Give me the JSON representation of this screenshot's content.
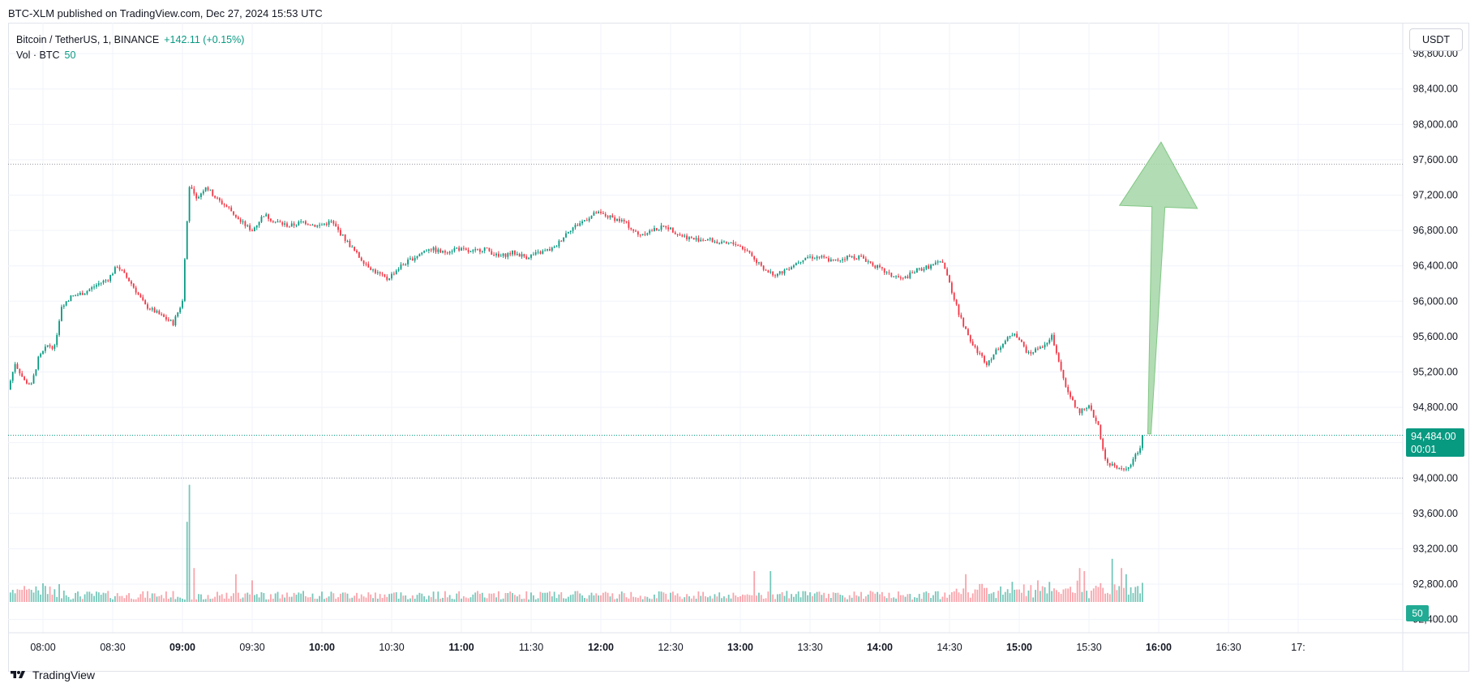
{
  "header": {
    "publish_text": "BTC-XLM published on TradingView.com, Dec 27, 2024 15:53 UTC"
  },
  "legend": {
    "symbol": "Bitcoin / TetherUS, 1, BINANCE",
    "change": "+142.11 (+0.15%)",
    "volume_label": "Vol · BTC",
    "volume_value": "50"
  },
  "unit_button": "USDT",
  "price_tag": {
    "price": "94,484.00",
    "countdown": "00:01"
  },
  "volume_tag": "50",
  "footer": {
    "brand": "TradingView"
  },
  "colors": {
    "up": "#089981",
    "down": "#f23645",
    "arrow": "#a5d6a7"
  },
  "chart_data": {
    "type": "candlestick",
    "interval_minutes": 1,
    "x_ticks": [
      "08:00",
      "08:30",
      "09:00",
      "09:30",
      "10:00",
      "10:30",
      "11:00",
      "11:30",
      "12:00",
      "12:30",
      "13:00",
      "13:30",
      "14:00",
      "14:30",
      "15:00",
      "15:30",
      "16:00",
      "16:30",
      "17:"
    ],
    "bold_ticks": [
      "09:00",
      "10:00",
      "11:00",
      "12:00",
      "13:00",
      "14:00",
      "15:00",
      "16:00"
    ],
    "y_ticks": [
      "98,800.00",
      "98,400.00",
      "98,000.00",
      "97,600.00",
      "97,200.00",
      "96,800.00",
      "96,400.00",
      "96,000.00",
      "95,600.00",
      "95,200.00",
      "94,800.00",
      "94,400.00",
      "94,000.00",
      "93,600.00",
      "93,200.00",
      "92,800.00",
      "92,400.00"
    ],
    "y_range": [
      92250,
      99150
    ],
    "x_range": [
      "07:45",
      "17:45"
    ],
    "reference_lines": {
      "high": 97550,
      "low": 94000,
      "last": 94484
    },
    "path": [
      [
        "07:45",
        95000
      ],
      [
        "07:48",
        95300
      ],
      [
        "07:52",
        95100
      ],
      [
        "07:55",
        95050
      ],
      [
        "07:58",
        95350
      ],
      [
        "08:02",
        95500
      ],
      [
        "08:05",
        95480
      ],
      [
        "08:08",
        95950
      ],
      [
        "08:12",
        96050
      ],
      [
        "08:18",
        96100
      ],
      [
        "08:24",
        96200
      ],
      [
        "08:28",
        96250
      ],
      [
        "08:32",
        96400
      ],
      [
        "08:38",
        96200
      ],
      [
        "08:44",
        95950
      ],
      [
        "08:50",
        95850
      ],
      [
        "08:56",
        95750
      ],
      [
        "09:00",
        96000
      ],
      [
        "09:01",
        96500
      ],
      [
        "09:03",
        97300
      ],
      [
        "09:06",
        97150
      ],
      [
        "09:10",
        97300
      ],
      [
        "09:15",
        97150
      ],
      [
        "09:20",
        97050
      ],
      [
        "09:25",
        96900
      ],
      [
        "09:30",
        96800
      ],
      [
        "09:35",
        96980
      ],
      [
        "09:40",
        96900
      ],
      [
        "09:46",
        96850
      ],
      [
        "09:52",
        96900
      ],
      [
        "09:58",
        96850
      ],
      [
        "10:04",
        96900
      ],
      [
        "10:10",
        96700
      ],
      [
        "10:16",
        96500
      ],
      [
        "10:22",
        96350
      ],
      [
        "10:28",
        96250
      ],
      [
        "10:34",
        96400
      ],
      [
        "10:40",
        96500
      ],
      [
        "10:46",
        96600
      ],
      [
        "10:52",
        96550
      ],
      [
        "10:58",
        96600
      ],
      [
        "11:04",
        96550
      ],
      [
        "11:10",
        96600
      ],
      [
        "11:16",
        96500
      ],
      [
        "11:22",
        96550
      ],
      [
        "11:28",
        96500
      ],
      [
        "11:34",
        96550
      ],
      [
        "11:40",
        96600
      ],
      [
        "11:46",
        96800
      ],
      [
        "11:52",
        96900
      ],
      [
        "11:58",
        97000
      ],
      [
        "12:04",
        96950
      ],
      [
        "12:10",
        96900
      ],
      [
        "12:16",
        96750
      ],
      [
        "12:22",
        96800
      ],
      [
        "12:28",
        96850
      ],
      [
        "12:34",
        96750
      ],
      [
        "12:40",
        96700
      ],
      [
        "12:46",
        96700
      ],
      [
        "12:52",
        96650
      ],
      [
        "12:58",
        96650
      ],
      [
        "13:04",
        96550
      ],
      [
        "13:10",
        96350
      ],
      [
        "13:16",
        96300
      ],
      [
        "13:22",
        96400
      ],
      [
        "13:28",
        96500
      ],
      [
        "13:34",
        96500
      ],
      [
        "13:40",
        96450
      ],
      [
        "13:46",
        96500
      ],
      [
        "13:52",
        96500
      ],
      [
        "13:58",
        96400
      ],
      [
        "14:04",
        96300
      ],
      [
        "14:10",
        96250
      ],
      [
        "14:16",
        96350
      ],
      [
        "14:22",
        96400
      ],
      [
        "14:27",
        96450
      ],
      [
        "14:30",
        96200
      ],
      [
        "14:34",
        95850
      ],
      [
        "14:40",
        95500
      ],
      [
        "14:46",
        95300
      ],
      [
        "14:52",
        95500
      ],
      [
        "14:58",
        95650
      ],
      [
        "15:04",
        95400
      ],
      [
        "15:10",
        95500
      ],
      [
        "15:14",
        95600
      ],
      [
        "15:18",
        95200
      ],
      [
        "15:22",
        94900
      ],
      [
        "15:26",
        94750
      ],
      [
        "15:30",
        94800
      ],
      [
        "15:34",
        94600
      ],
      [
        "15:37",
        94200
      ],
      [
        "15:40",
        94150
      ],
      [
        "15:44",
        94100
      ],
      [
        "15:48",
        94150
      ],
      [
        "15:52",
        94350
      ],
      [
        "15:53",
        94484
      ]
    ],
    "volume": {
      "ylim": [
        0,
        200
      ],
      "spikes": [
        [
          "09:03",
          190
        ],
        [
          "09:02",
          130
        ],
        [
          "09:05",
          55
        ],
        [
          "09:23",
          45
        ],
        [
          "09:30",
          35
        ],
        [
          "13:06",
          50
        ],
        [
          "13:13",
          50
        ],
        [
          "14:37",
          45
        ],
        [
          "15:08",
          35
        ],
        [
          "15:26",
          55
        ],
        [
          "15:28",
          50
        ],
        [
          "15:40",
          70
        ],
        [
          "15:44",
          55
        ],
        [
          "15:46",
          45
        ]
      ]
    },
    "annotation": {
      "type": "arrow",
      "from": [
        "15:56",
        94500
      ],
      "to": [
        "16:01",
        97800
      ],
      "color": "#a5d6a7"
    }
  }
}
